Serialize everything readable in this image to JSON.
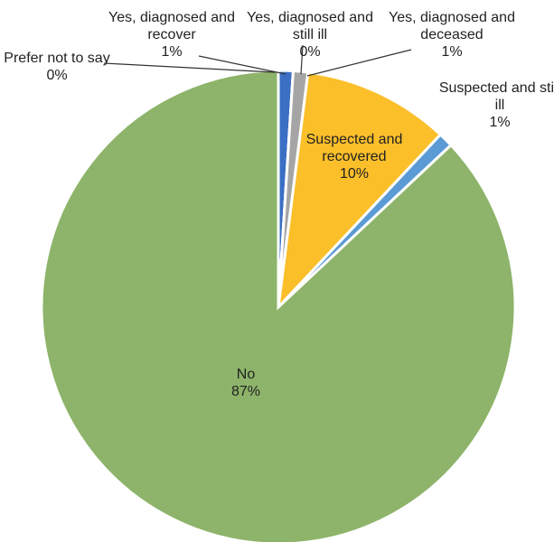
{
  "chart_data": {
    "type": "pie",
    "categories": [
      "Yes, diagnosed and recover",
      "Yes, diagnosed and still ill",
      "Yes, diagnosed and deceased",
      "Suspected and recovered",
      "Suspected and still ill",
      "No",
      "Prefer not to say"
    ],
    "values": [
      1,
      0,
      1,
      10,
      1,
      87,
      0
    ],
    "value_labels": [
      "1%",
      "0%",
      "1%",
      "10%",
      "1%",
      "87%",
      "0%"
    ],
    "colors": [
      "#3a6fc4",
      "#7f7f7f",
      "#a5a5a5",
      "#fbbf2a",
      "#5b9bd5",
      "#8db46a",
      "#4472c4"
    ]
  }
}
